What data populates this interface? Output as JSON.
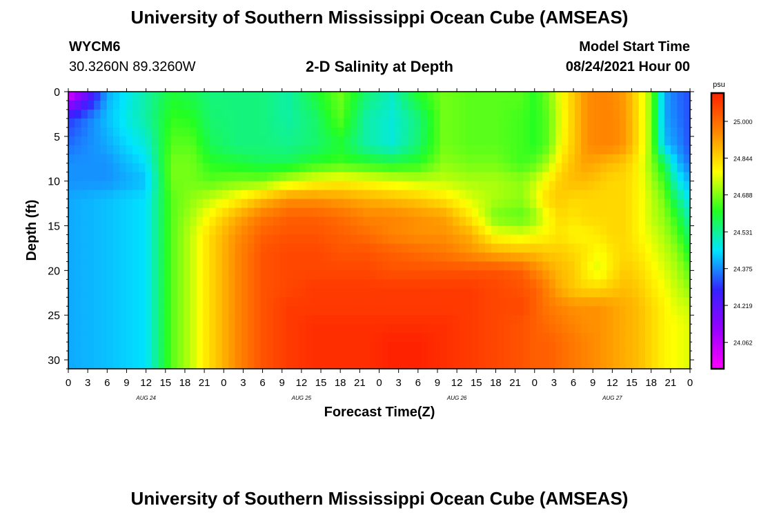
{
  "header": {
    "title": "University of Southern Mississippi Ocean Cube (AMSEAS)",
    "footer_title": "University of Southern Mississippi Ocean Cube (AMSEAS)",
    "station": "WYCM6",
    "coords": "30.3260N  89.3260W",
    "plot_title": "2-D Salinity at Depth",
    "start_label": "Model Start Time",
    "start_value": "08/24/2021 Hour 00"
  },
  "chart_data": {
    "type": "heatmap",
    "title": "2-D Salinity at Depth",
    "xlabel": "Forecast Time(Z)",
    "ylabel": "Depth (ft)",
    "x_range_hours": [
      0,
      96
    ],
    "ylim": [
      0,
      31
    ],
    "y_inverted": true,
    "x_tick_labels": [
      "0",
      "3",
      "6",
      "9",
      "12",
      "15",
      "18",
      "21",
      "0",
      "3",
      "6",
      "9",
      "12",
      "15",
      "18",
      "21",
      "0",
      "3",
      "6",
      "9",
      "12",
      "15",
      "18",
      "21",
      "0",
      "3",
      "6",
      "9",
      "12",
      "15",
      "18",
      "21",
      "0"
    ],
    "day_labels": [
      {
        "text": "AUG 24",
        "hour": 12
      },
      {
        "text": "AUG 25",
        "hour": 36
      },
      {
        "text": "AUG 26",
        "hour": 60
      },
      {
        "text": "AUG 27",
        "hour": 84
      }
    ],
    "y_ticks": [
      0,
      5,
      10,
      15,
      20,
      25,
      30
    ],
    "colorbar": {
      "unit": "psu",
      "min": 23.95,
      "max": 25.12,
      "labels": [
        "25.000",
        "24.844",
        "24.688",
        "24.531",
        "24.375",
        "24.219",
        "24.062"
      ],
      "colors": [
        "#ff00ff",
        "#9900ff",
        "#3322ff",
        "#00e5ff",
        "#22ff22",
        "#ffff00",
        "#ff8800",
        "#ff2200"
      ]
    },
    "depths_ft": [
      0,
      3,
      6,
      8,
      10,
      12,
      14,
      16,
      18,
      20,
      22,
      24,
      26,
      28,
      31
    ],
    "hours": [
      0,
      6,
      12,
      16,
      19,
      22,
      26,
      30,
      34,
      38,
      42,
      46,
      50,
      54,
      58,
      62,
      66,
      70,
      72,
      74,
      76,
      78,
      80,
      82,
      84,
      86,
      88,
      90,
      92,
      94,
      96
    ],
    "values": [
      [
        23.97,
        24.4,
        24.52,
        24.6,
        24.58,
        24.55,
        24.55,
        24.55,
        24.52,
        24.6,
        24.68,
        24.56,
        24.5,
        24.62,
        24.68,
        24.66,
        24.66,
        24.66,
        24.62,
        24.68,
        24.78,
        24.86,
        24.94,
        24.96,
        24.95,
        24.92,
        24.82,
        24.7,
        24.4,
        24.35,
        24.32
      ],
      [
        24.3,
        24.42,
        24.52,
        24.63,
        24.62,
        24.56,
        24.55,
        24.55,
        24.52,
        24.56,
        24.66,
        24.52,
        24.48,
        24.55,
        24.68,
        24.66,
        24.66,
        24.64,
        24.62,
        24.66,
        24.76,
        24.86,
        24.94,
        24.96,
        24.96,
        24.93,
        24.83,
        24.7,
        24.4,
        24.36,
        24.32
      ],
      [
        24.35,
        24.4,
        24.48,
        24.66,
        24.66,
        24.58,
        24.55,
        24.55,
        24.54,
        24.56,
        24.6,
        24.52,
        24.48,
        24.56,
        24.68,
        24.66,
        24.66,
        24.64,
        24.62,
        24.66,
        24.78,
        24.86,
        24.94,
        24.96,
        24.96,
        24.93,
        24.83,
        24.7,
        24.42,
        24.38,
        24.32
      ],
      [
        24.38,
        24.38,
        24.45,
        24.68,
        24.68,
        24.62,
        24.6,
        24.58,
        24.58,
        24.62,
        24.64,
        24.62,
        24.6,
        24.62,
        24.7,
        24.68,
        24.68,
        24.64,
        24.66,
        24.72,
        24.82,
        24.88,
        24.92,
        24.9,
        24.88,
        24.86,
        24.8,
        24.7,
        24.58,
        24.42,
        24.35
      ],
      [
        24.38,
        24.38,
        24.42,
        24.68,
        24.68,
        24.66,
        24.68,
        24.68,
        24.74,
        24.78,
        24.8,
        24.78,
        24.76,
        24.74,
        24.74,
        24.72,
        24.72,
        24.7,
        24.74,
        24.8,
        24.86,
        24.88,
        24.88,
        24.86,
        24.84,
        24.84,
        24.8,
        24.72,
        24.64,
        24.48,
        24.4
      ],
      [
        24.4,
        24.42,
        24.45,
        24.66,
        24.7,
        24.74,
        24.8,
        24.88,
        24.94,
        24.94,
        24.92,
        24.9,
        24.88,
        24.86,
        24.82,
        24.76,
        24.72,
        24.7,
        24.76,
        24.84,
        24.86,
        24.84,
        24.84,
        24.84,
        24.84,
        24.84,
        24.8,
        24.74,
        24.68,
        24.55,
        24.45
      ],
      [
        24.4,
        24.42,
        24.45,
        24.66,
        24.72,
        24.8,
        24.9,
        24.98,
        25.02,
        25.02,
        25.0,
        24.96,
        24.96,
        24.94,
        24.92,
        24.82,
        24.68,
        24.66,
        24.7,
        24.78,
        24.84,
        24.82,
        24.84,
        24.84,
        24.84,
        24.84,
        24.8,
        24.74,
        24.7,
        24.62,
        24.5
      ],
      [
        24.4,
        24.42,
        24.45,
        24.66,
        24.74,
        24.84,
        24.94,
        25.02,
        25.04,
        25.04,
        25.02,
        25.0,
        24.96,
        24.94,
        24.94,
        24.9,
        24.78,
        24.76,
        24.78,
        24.8,
        24.82,
        24.8,
        24.8,
        24.82,
        24.84,
        24.84,
        24.8,
        24.76,
        24.72,
        24.66,
        24.55
      ],
      [
        24.4,
        24.42,
        24.45,
        24.66,
        24.74,
        24.84,
        24.95,
        25.04,
        25.06,
        25.06,
        25.04,
        25.04,
        25.02,
        25.0,
        24.98,
        24.94,
        24.9,
        24.88,
        24.88,
        24.86,
        24.86,
        24.84,
        24.82,
        24.78,
        24.82,
        24.84,
        24.82,
        24.78,
        24.74,
        24.7,
        24.6
      ],
      [
        24.4,
        24.42,
        24.45,
        24.66,
        24.74,
        24.84,
        24.95,
        25.04,
        25.06,
        25.06,
        25.06,
        25.06,
        25.04,
        25.04,
        25.04,
        25.04,
        25.04,
        25.02,
        24.96,
        24.92,
        24.88,
        24.86,
        24.8,
        24.76,
        24.82,
        24.86,
        24.84,
        24.8,
        24.76,
        24.72,
        24.66
      ],
      [
        24.4,
        24.42,
        24.45,
        24.66,
        24.74,
        24.84,
        24.95,
        25.04,
        25.06,
        25.08,
        25.08,
        25.08,
        25.08,
        25.08,
        25.08,
        25.08,
        25.06,
        25.04,
        25.02,
        24.96,
        24.9,
        24.86,
        24.84,
        24.84,
        24.86,
        24.88,
        24.86,
        24.82,
        24.78,
        24.74,
        24.7
      ],
      [
        24.4,
        24.42,
        24.45,
        24.66,
        24.74,
        24.84,
        24.95,
        25.04,
        25.08,
        25.08,
        25.08,
        25.08,
        25.08,
        25.08,
        25.08,
        25.08,
        25.06,
        25.06,
        25.02,
        24.98,
        24.96,
        24.94,
        24.94,
        24.94,
        24.92,
        24.9,
        24.88,
        24.84,
        24.8,
        24.76,
        24.74
      ],
      [
        24.4,
        24.42,
        24.45,
        24.66,
        24.74,
        24.84,
        24.95,
        25.04,
        25.08,
        25.1,
        25.1,
        25.1,
        25.1,
        25.1,
        25.1,
        25.08,
        25.06,
        25.04,
        25.02,
        25.0,
        24.98,
        24.96,
        24.94,
        24.94,
        24.92,
        24.9,
        24.88,
        24.84,
        24.8,
        24.78,
        24.76
      ],
      [
        24.4,
        24.42,
        24.45,
        24.66,
        24.74,
        24.84,
        24.95,
        25.04,
        25.08,
        25.1,
        25.1,
        25.1,
        25.12,
        25.12,
        25.1,
        25.08,
        25.06,
        25.04,
        25.02,
        25.02,
        25.0,
        24.98,
        24.96,
        24.94,
        24.92,
        24.9,
        24.88,
        24.84,
        24.8,
        24.78,
        24.76
      ],
      [
        24.4,
        24.42,
        24.45,
        24.66,
        24.74,
        24.84,
        24.95,
        25.04,
        25.08,
        25.1,
        25.1,
        25.1,
        25.12,
        25.12,
        25.1,
        25.08,
        25.06,
        25.04,
        25.02,
        25.02,
        25.0,
        24.98,
        24.96,
        24.94,
        24.92,
        24.9,
        24.88,
        24.84,
        24.8,
        24.78,
        24.76
      ]
    ]
  }
}
